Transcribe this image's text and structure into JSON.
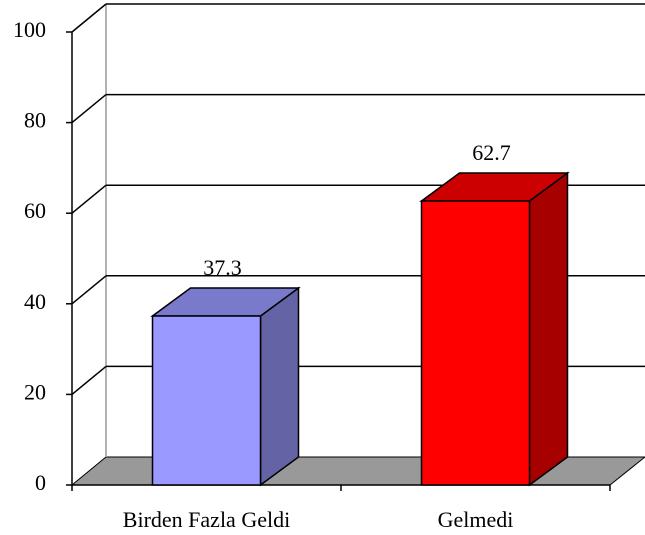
{
  "chart_data": {
    "type": "bar3d",
    "categories": [
      "Birden Fazla Geldi",
      "Gelmedi"
    ],
    "values": [
      37.3,
      62.7
    ],
    "colors": [
      "#9999ff",
      "#ff0000"
    ],
    "ylim": [
      0,
      100
    ],
    "yticks": [
      0,
      20,
      40,
      60,
      80,
      100
    ],
    "grid": true
  }
}
